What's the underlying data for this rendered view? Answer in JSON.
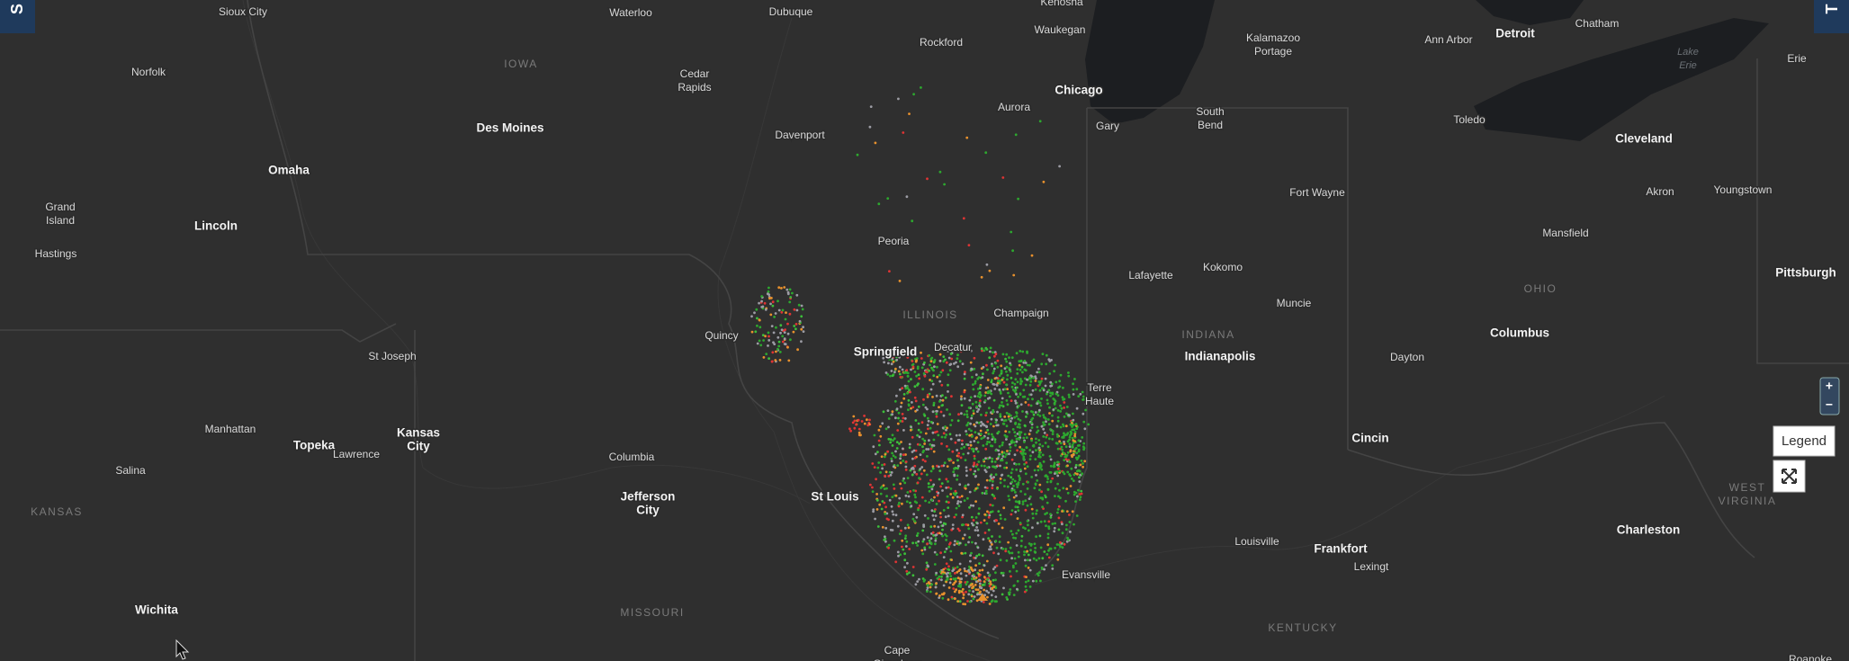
{
  "controls": {
    "tab_left": "S",
    "tab_right": "T",
    "zoom_in": "+",
    "zoom_out": "−",
    "legend": "Legend"
  },
  "map": {
    "cities": [
      "Sioux City",
      "Waterloo",
      "Dubuque",
      "Kenosha",
      "Waukegan",
      "Rockford",
      [
        "Kalamazoo",
        "Portage"
      ],
      "Ann Arbor",
      "Detroit",
      "Chatham",
      "Erie",
      "Norfolk",
      [
        "Cedar",
        "Rapids"
      ],
      "Chicago",
      "Aurora",
      "Gary",
      [
        "South",
        "Bend"
      ],
      "Toledo",
      "Des Moines",
      "Davenport",
      "Cleveland",
      "Omaha",
      "Fort Wayne",
      "Akron",
      "Youngstown",
      [
        "Grand",
        "Island"
      ],
      "Lincoln",
      "Mansfield",
      "Peoria",
      "Hastings",
      "Lafayette",
      "Kokomo",
      "Pittsburgh",
      "Champaign",
      "Muncie",
      "Quincy",
      "Columbus",
      "Springfield",
      "Decatur",
      "Indianapolis",
      "Dayton",
      "St Joseph",
      [
        "Terre",
        "Haute"
      ],
      "Manhattan",
      [
        "Kansas",
        "City"
      ],
      "Topeka",
      "Lawrence",
      "Cincin",
      "Columbia",
      "Salina",
      [
        "Jefferson",
        "City"
      ],
      "St Louis",
      "Charleston",
      "Louisville",
      "Frankfort",
      "Evansville",
      "Lexingt",
      "Wichita",
      [
        "Cape",
        "Girardeau"
      ],
      "Roanoke"
    ],
    "states": [
      "IOWA",
      "ILLINOIS",
      "INDIANA",
      "OHIO",
      "KANSAS",
      "MISSOURI",
      "KENTUCKY",
      [
        "WEST",
        "VIRGINIA"
      ]
    ],
    "water": [
      [
        "Lake",
        "Erie"
      ]
    ]
  }
}
